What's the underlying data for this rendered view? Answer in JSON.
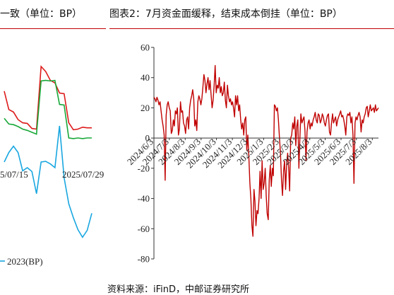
{
  "left_panel": {
    "title": "一致（单位：BP）",
    "chart_data": {
      "type": "line",
      "x_tick_labels": [
        "5/07/15",
        "2025/07/29"
      ],
      "legend": [
        "2023(BP)"
      ],
      "series": [
        {
          "name": "",
          "color": "#dd1a1a",
          "values": [
            6.3,
            3.4,
            3.0,
            1.8,
            1.3,
            1.2,
            0.4,
            0.3,
            10.2,
            9.4,
            8.0,
            7.6,
            6.0,
            5.9,
            1.3,
            0.2,
            0.3,
            0.6,
            0.5,
            0.5
          ]
        },
        {
          "name": "",
          "color": "#18a838",
          "values": [
            2.0,
            1.1,
            1.0,
            0.7,
            0.3,
            0.1,
            -0.2,
            -0.5,
            7.9,
            8.0,
            7.9,
            8.0,
            4.2,
            4.1,
            -1.1,
            -1.2,
            -1.1,
            -1.2,
            -1.1,
            -1.1
          ]
        },
        {
          "name": "2023(BP)",
          "color": "#19a7e0",
          "values": [
            -4.9,
            -3.4,
            -2.4,
            -3.4,
            -6.3,
            -5.8,
            -6.4,
            -9.9,
            -4.9,
            -4.8,
            -5.2,
            -5.8,
            0.8,
            -7.4,
            -11.5,
            -13.7,
            -15.6,
            -16.8,
            -15.7,
            -13.0
          ]
        }
      ]
    }
  },
  "right_panel": {
    "title": "图表2：7月资金面缓释，结束成本倒挂（单位：BP）",
    "chart_data": {
      "type": "line",
      "ylim": [
        -80,
        60
      ],
      "y_ticks": [
        60,
        40,
        20,
        0,
        -20,
        -40,
        -60,
        -80
      ],
      "x_tick_labels": [
        "2024/6/3",
        "2024/7/3",
        "2024/8/3",
        "2024/9/3",
        "2024/10/3",
        "2024/11/3",
        "2024/12/3",
        "2025/1/3",
        "2025/2/3",
        "2025/3/3",
        "2025/4/3",
        "2025/5/3",
        "2025/6/3",
        "2025/7/3",
        "2025/8/3"
      ],
      "x_start": "2024-06-03",
      "x_end": "2025-08-15",
      "series": [
        {
          "name": "",
          "color": "#c00000",
          "values": [
            27,
            26,
            24,
            27,
            25,
            22,
            24,
            18,
            12,
            8,
            2,
            -28,
            15,
            22,
            24,
            20,
            18,
            3,
            5,
            12,
            8,
            18,
            16,
            20,
            2,
            6,
            24,
            17,
            18,
            10,
            8,
            3,
            12,
            14,
            6,
            20,
            25,
            28,
            32,
            26,
            8,
            12,
            5,
            24,
            28,
            26,
            22,
            26,
            34,
            42,
            38,
            30,
            36,
            40,
            32,
            38,
            29,
            20,
            25,
            35,
            48,
            30,
            35,
            33,
            40,
            30,
            34,
            28,
            30,
            37,
            25,
            20,
            35,
            28,
            24,
            26,
            22,
            24,
            20,
            14,
            28,
            22,
            28,
            18,
            22,
            12,
            6,
            10,
            2,
            12,
            14,
            -8,
            2,
            -12,
            -30,
            -40,
            -58,
            -65,
            -34,
            -42,
            -58,
            -48,
            -50,
            -40,
            -22,
            -40,
            -15,
            -34,
            -30,
            -20,
            -38,
            -50,
            -54,
            -28,
            -18,
            -32,
            -20,
            -25,
            22,
            21,
            18,
            20,
            12,
            0,
            -10,
            -28,
            -38,
            -22,
            -15,
            -34,
            -18,
            -10,
            -20,
            -35,
            0,
            2,
            10,
            6,
            14,
            -5,
            8,
            12,
            -20,
            0,
            16,
            10,
            12,
            14,
            5,
            -15,
            4,
            10,
            12,
            6,
            10,
            8,
            12,
            14,
            17,
            12,
            10,
            16,
            15,
            10,
            12,
            16,
            14,
            10,
            8,
            12,
            15,
            16,
            4,
            2,
            10,
            16,
            10,
            12,
            14,
            8,
            12,
            14,
            16,
            18,
            14,
            15,
            12,
            8,
            2,
            14,
            16,
            15,
            17,
            10,
            14,
            2,
            -30,
            10,
            14,
            12,
            15,
            17,
            14,
            4,
            12,
            10,
            14,
            16,
            20,
            21,
            14,
            18,
            22,
            18,
            19,
            20,
            17,
            22,
            18,
            19,
            20
          ]
        }
      ]
    }
  },
  "source_note": "资料来源：iFinD，中邮证券研究所"
}
